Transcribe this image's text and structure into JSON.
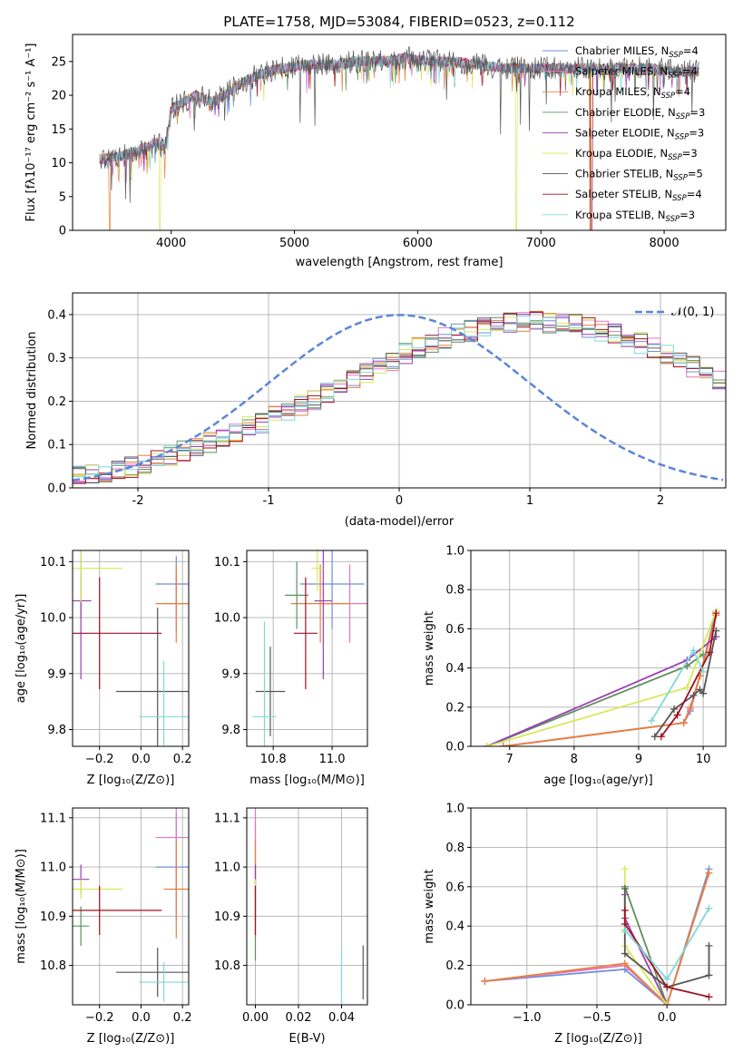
{
  "figure_title": "PLATE=1758, MJD=53084, FIBERID=0523, z=0.112",
  "colors": {
    "chabrier_miles": "#6f8fd8",
    "salpeter_miles": "#e377c2",
    "kroupa_miles": "#e8803a",
    "chabrier_elodie": "#5f8f5f",
    "salpeter_elodie": "#9b3fb5",
    "kroupa_elodie": "#d8e85a",
    "chabrier_stelib": "#555555",
    "salpeter_stelib": "#a01020",
    "kroupa_stelib": "#80d8d8",
    "normal": "#5b86d6"
  },
  "models": [
    {
      "key": "chabrier_miles",
      "label": "Chabrier MILES, N",
      "sub": "SSP",
      "eq": "=4"
    },
    {
      "key": "salpeter_miles",
      "label": "Salpeter MILES, N",
      "sub": "SSP",
      "eq": "=4"
    },
    {
      "key": "kroupa_miles",
      "label": "Kroupa MILES, N",
      "sub": "SSP",
      "eq": "=4"
    },
    {
      "key": "chabrier_elodie",
      "label": "Chabrier ELODIE, N",
      "sub": "SSP",
      "eq": "=3"
    },
    {
      "key": "salpeter_elodie",
      "label": "Salpeter ELODIE, N",
      "sub": "SSP",
      "eq": "=3"
    },
    {
      "key": "kroupa_elodie",
      "label": "Kroupa ELODIE, N",
      "sub": "SSP",
      "eq": "=3"
    },
    {
      "key": "chabrier_stelib",
      "label": "Chabrier STELIB, N",
      "sub": "SSP",
      "eq": "=5"
    },
    {
      "key": "salpeter_stelib",
      "label": "Salpeter STELIB, N",
      "sub": "SSP",
      "eq": "=4"
    },
    {
      "key": "kroupa_stelib",
      "label": "Kroupa STELIB, N",
      "sub": "SSP",
      "eq": "=3"
    }
  ],
  "chart_data": [
    {
      "id": "spectrum",
      "type": "line",
      "xlabel": "wavelength [Angstrom, rest frame]",
      "ylabel": "Flux [fλ10⁻¹⁷ erg cm⁻² s⁻¹ A⁻¹]",
      "xlim": [
        3200,
        8500
      ],
      "ylim": [
        0,
        29
      ],
      "xticks": [
        4000,
        5000,
        6000,
        7000,
        8000
      ],
      "yticks": [
        0,
        5,
        10,
        15,
        20,
        25
      ],
      "continuum": [
        [
          3420,
          10.5
        ],
        [
          3600,
          11
        ],
        [
          3750,
          12
        ],
        [
          3880,
          13
        ],
        [
          3950,
          12
        ],
        [
          4000,
          18
        ],
        [
          4100,
          19
        ],
        [
          4200,
          20
        ],
        [
          4350,
          19
        ],
        [
          4500,
          21
        ],
        [
          4700,
          23
        ],
        [
          4900,
          24
        ],
        [
          5100,
          24.5
        ],
        [
          5300,
          24.5
        ],
        [
          5500,
          25
        ],
        [
          5700,
          25
        ],
        [
          5900,
          25.5
        ],
        [
          6100,
          25
        ],
        [
          6300,
          25
        ],
        [
          6500,
          24.5
        ],
        [
          6700,
          24
        ],
        [
          6900,
          24
        ],
        [
          7100,
          24
        ],
        [
          7300,
          24
        ],
        [
          7500,
          24
        ],
        [
          7700,
          24
        ],
        [
          7900,
          24
        ],
        [
          8100,
          23.5
        ],
        [
          8280,
          23.5
        ]
      ]
    },
    {
      "id": "residuals",
      "type": "histogram",
      "xlabel": "(data-model)/error",
      "ylabel": "Normed distribution",
      "xlim": [
        -2.5,
        2.5
      ],
      "ylim": [
        0,
        0.45
      ],
      "xticks": [
        -2,
        -1,
        0,
        1,
        2
      ],
      "yticks": [
        0.0,
        0.1,
        0.2,
        0.3,
        0.4
      ],
      "legend": "𝒩(0, 1)",
      "bin_width": 0.1,
      "bin_start": -2.5,
      "base": [
        0.028,
        0.03,
        0.035,
        0.04,
        0.048,
        0.055,
        0.065,
        0.075,
        0.085,
        0.095,
        0.105,
        0.115,
        0.128,
        0.14,
        0.152,
        0.165,
        0.178,
        0.19,
        0.205,
        0.22,
        0.235,
        0.25,
        0.265,
        0.28,
        0.295,
        0.31,
        0.322,
        0.335,
        0.345,
        0.355,
        0.363,
        0.37,
        0.376,
        0.38,
        0.382,
        0.383,
        0.382,
        0.38,
        0.376,
        0.37,
        0.363,
        0.355,
        0.345,
        0.335,
        0.322,
        0.31,
        0.295,
        0.28,
        0.265,
        0.25,
        0.235,
        0.22,
        0.205,
        0.19,
        0.178,
        0.165,
        0.152,
        0.14,
        0.128,
        0.115,
        0.105,
        0.095,
        0.085,
        0.075,
        0.065,
        0.055,
        0.048,
        0.04,
        0.035,
        0.03,
        0.028,
        0.027,
        0.026,
        0.025,
        0.025,
        0.024,
        0.024,
        0.023,
        0.023,
        0.023
      ]
    },
    {
      "id": "age_vs_Z",
      "type": "errorbar",
      "xlabel": "Z [log₁₀(Z/Z⊙)]",
      "ylabel": "age  [log₁₀(age/yr)]",
      "xlim": [
        -0.33,
        0.23
      ],
      "ylim": [
        9.77,
        10.12
      ],
      "xticks": [
        -0.2,
        0.0,
        0.2
      ],
      "xticklabels": [
        "−0.2",
        "0.0",
        "0.2"
      ],
      "yticks": [
        9.8,
        9.9,
        10.0,
        10.1
      ],
      "points": [
        {
          "model": "chabrier_miles",
          "x": 0.17,
          "y": 10.06,
          "xerr": 0.1,
          "yerr": 0.05
        },
        {
          "model": "salpeter_miles",
          "x": 0.17,
          "y": 10.025,
          "xerr": 0.06,
          "yerr": 0.05
        },
        {
          "model": "kroupa_miles",
          "x": 0.17,
          "y": 10.025,
          "xerr": 0.1,
          "yerr": 0.07
        },
        {
          "model": "chabrier_elodie",
          "x": -0.29,
          "y": 10.04,
          "xerr": 0.0,
          "yerr": 0.04
        },
        {
          "model": "salpeter_elodie",
          "x": -0.29,
          "y": 10.03,
          "xerr": 0.05,
          "yerr": 0.14
        },
        {
          "model": "kroupa_elodie",
          "x": -0.29,
          "y": 10.088,
          "xerr": 0.2,
          "yerr": 0.06
        },
        {
          "model": "chabrier_stelib",
          "x": 0.08,
          "y": 9.868,
          "xerr": 0.2,
          "yerr": 0.15
        },
        {
          "model": "salpeter_stelib",
          "x": -0.2,
          "y": 9.972,
          "xerr": 0.3,
          "yerr": 0.1
        },
        {
          "model": "kroupa_stelib",
          "x": 0.11,
          "y": 9.823,
          "xerr": 0.12,
          "yerr": 0.1
        }
      ]
    },
    {
      "id": "age_vs_mass",
      "type": "errorbar",
      "xlabel": "mass [log₁₀(M/M⊙)]",
      "ylabel": "",
      "xlim": [
        10.71,
        11.12
      ],
      "ylim": [
        9.77,
        10.12
      ],
      "xticks": [
        10.8,
        11.0
      ],
      "xticklabels": [
        "10.8",
        "11.0"
      ],
      "yticks": [
        9.8,
        9.9,
        10.0,
        10.1
      ],
      "points": [
        {
          "model": "chabrier_miles",
          "x": 11.0,
          "y": 10.06,
          "xerr": 0.11,
          "yerr": 0.08
        },
        {
          "model": "salpeter_miles",
          "x": 11.06,
          "y": 10.025,
          "xerr": 0.09,
          "yerr": 0.07
        },
        {
          "model": "kroupa_miles",
          "x": 10.96,
          "y": 10.025,
          "xerr": 0.1,
          "yerr": 0.07
        },
        {
          "model": "chabrier_elodie",
          "x": 10.88,
          "y": 10.04,
          "xerr": 0.04,
          "yerr": 0.06
        },
        {
          "model": "salpeter_elodie",
          "x": 10.97,
          "y": 10.03,
          "xerr": 0.03,
          "yerr": 0.14
        },
        {
          "model": "kroupa_elodie",
          "x": 10.95,
          "y": 10.088,
          "xerr": 0.02,
          "yerr": 0.04
        },
        {
          "model": "chabrier_stelib",
          "x": 10.79,
          "y": 9.868,
          "xerr": 0.05,
          "yerr": 0.08
        },
        {
          "model": "salpeter_stelib",
          "x": 10.91,
          "y": 9.972,
          "xerr": 0.04,
          "yerr": 0.1
        },
        {
          "model": "kroupa_stelib",
          "x": 10.77,
          "y": 9.823,
          "xerr": 0.04,
          "yerr": 0.17
        }
      ]
    },
    {
      "id": "mass_vs_Z",
      "type": "errorbar",
      "xlabel": "Z [log₁₀(Z/Z⊙)]",
      "ylabel": "mass [log₁₀(M/M⊙)]",
      "xlim": [
        -0.33,
        0.23
      ],
      "ylim": [
        10.72,
        11.12
      ],
      "xticks": [
        -0.2,
        0.0,
        0.2
      ],
      "xticklabels": [
        "−0.2",
        "0.0",
        "0.2"
      ],
      "yticks": [
        10.8,
        10.9,
        11.0,
        11.1
      ],
      "points": [
        {
          "model": "chabrier_miles",
          "x": 0.17,
          "y": 11.0,
          "xerr": 0.1,
          "yerr": 0.11
        },
        {
          "model": "salpeter_miles",
          "x": 0.17,
          "y": 11.06,
          "xerr": 0.1,
          "yerr": 0.09
        },
        {
          "model": "kroupa_miles",
          "x": 0.17,
          "y": 10.955,
          "xerr": 0.06,
          "yerr": 0.1
        },
        {
          "model": "chabrier_elodie",
          "x": -0.29,
          "y": 10.88,
          "xerr": 0.04,
          "yerr": 0.04
        },
        {
          "model": "salpeter_elodie",
          "x": -0.29,
          "y": 10.975,
          "xerr": 0.04,
          "yerr": 0.03
        },
        {
          "model": "kroupa_elodie",
          "x": -0.29,
          "y": 10.955,
          "xerr": 0.2,
          "yerr": 0.02
        },
        {
          "model": "chabrier_stelib",
          "x": 0.08,
          "y": 10.786,
          "xerr": 0.2,
          "yerr": 0.05
        },
        {
          "model": "salpeter_stelib",
          "x": -0.2,
          "y": 10.912,
          "xerr": 0.3,
          "yerr": 0.05
        },
        {
          "model": "kroupa_stelib",
          "x": 0.11,
          "y": 10.766,
          "xerr": 0.12,
          "yerr": 0.04
        }
      ]
    },
    {
      "id": "mass_vs_ebv",
      "type": "errorbar",
      "xlabel": "E(B-V)",
      "ylabel": "",
      "xlim": [
        -0.004,
        0.052
      ],
      "ylim": [
        10.72,
        11.12
      ],
      "xticks": [
        0.0,
        0.02,
        0.04
      ],
      "xticklabels": [
        "0.00",
        "0.02",
        "0.04"
      ],
      "yticks": [
        10.8,
        10.9,
        11.0,
        11.1
      ],
      "points": [
        {
          "model": "chabrier_miles",
          "x": 0.0,
          "y": 11.0,
          "xerr": 0.0,
          "yerr": 0.11
        },
        {
          "model": "salpeter_miles",
          "x": 0.0,
          "y": 11.06,
          "xerr": 0.0,
          "yerr": 0.09
        },
        {
          "model": "kroupa_miles",
          "x": 0.0,
          "y": 10.955,
          "xerr": 0.0,
          "yerr": 0.1
        },
        {
          "model": "chabrier_elodie",
          "x": 0.0,
          "y": 10.88,
          "xerr": 0.0,
          "yerr": 0.07
        },
        {
          "model": "salpeter_elodie",
          "x": 0.0,
          "y": 10.975,
          "xerr": 0.0,
          "yerr": 0.03
        },
        {
          "model": "kroupa_elodie",
          "x": 0.0,
          "y": 10.955,
          "xerr": 0.0,
          "yerr": 0.02
        },
        {
          "model": "chabrier_stelib",
          "x": 0.05,
          "y": 10.786,
          "xerr": 0.0,
          "yerr": 0.055
        },
        {
          "model": "salpeter_stelib",
          "x": 0.0,
          "y": 10.912,
          "xerr": 0.0,
          "yerr": 0.05
        },
        {
          "model": "kroupa_stelib",
          "x": 0.04,
          "y": 10.766,
          "xerr": 0.0,
          "yerr": 0.065
        }
      ]
    },
    {
      "id": "massweight_vs_age",
      "type": "line",
      "xlabel": "age  [log₁₀(age/yr)]",
      "ylabel": "mass weight",
      "xlim": [
        6.4,
        10.35
      ],
      "ylim": [
        0,
        1
      ],
      "xticks": [
        7,
        8,
        9,
        10
      ],
      "xticklabels": [
        "7",
        "8",
        "9",
        "10"
      ],
      "yticks": [
        0.0,
        0.2,
        0.4,
        0.6,
        0.8,
        1.0
      ],
      "yticklabels": [
        "0.0",
        "0.2",
        "0.4",
        "0.6",
        "0.8",
        "1.0"
      ],
      "series": [
        {
          "model": "chabrier_miles",
          "x": [
            6.9,
            9.7,
            9.8,
            9.95,
            10.2
          ],
          "y": [
            0.0,
            0.12,
            0.18,
            0.36,
            0.69
          ]
        },
        {
          "model": "salpeter_miles",
          "x": [
            6.9,
            9.7,
            9.8,
            9.95,
            10.2
          ],
          "y": [
            0.0,
            0.12,
            0.19,
            0.36,
            0.67
          ]
        },
        {
          "model": "kroupa_miles",
          "x": [
            6.9,
            9.7,
            9.8,
            9.95,
            10.2
          ],
          "y": [
            0.0,
            0.12,
            0.2,
            0.36,
            0.67
          ]
        },
        {
          "model": "chabrier_elodie",
          "x": [
            6.65,
            9.75,
            10.0
          ],
          "y": [
            0.0,
            0.41,
            0.47
          ]
        },
        {
          "model": "salpeter_elodie",
          "x": [
            6.65,
            9.75,
            10.2
          ],
          "y": [
            0.0,
            0.44,
            0.56
          ]
        },
        {
          "model": "kroupa_elodie",
          "x": [
            6.65,
            9.75,
            10.2
          ],
          "y": [
            0.0,
            0.3,
            0.69
          ]
        },
        {
          "model": "chabrier_stelib",
          "x": [
            9.25,
            9.55,
            9.85,
            9.95,
            10.0,
            10.2
          ],
          "y": [
            0.05,
            0.19,
            0.26,
            0.29,
            0.27,
            0.59
          ]
        },
        {
          "model": "salpeter_stelib",
          "x": [
            9.35,
            9.6,
            10.1,
            10.2
          ],
          "y": [
            0.05,
            0.16,
            0.48,
            0.68
          ]
        },
        {
          "model": "kroupa_stelib",
          "x": [
            9.2,
            9.85,
            10.0
          ],
          "y": [
            0.13,
            0.49,
            0.38
          ]
        }
      ]
    },
    {
      "id": "massweight_vs_Z",
      "type": "line",
      "xlabel": "Z [log₁₀(Z/Z⊙)]",
      "ylabel": "mass weight",
      "xlim": [
        -1.4,
        0.42
      ],
      "ylim": [
        0,
        1
      ],
      "xticks": [
        -1.0,
        -0.5,
        0.0
      ],
      "xticklabels": [
        "−1.0",
        "−0.5",
        "0.0"
      ],
      "yticks": [
        0.0,
        0.2,
        0.4,
        0.6,
        0.8,
        1.0
      ],
      "yticklabels": [
        "0.0",
        "0.2",
        "0.4",
        "0.6",
        "0.8",
        "1.0"
      ],
      "series": [
        {
          "model": "chabrier_miles",
          "x": [
            -1.3,
            -0.3,
            0.0,
            0.3
          ],
          "y": [
            0.12,
            0.18,
            0.0,
            0.69
          ]
        },
        {
          "model": "salpeter_miles",
          "x": [
            -1.3,
            -0.3,
            0.0,
            0.3
          ],
          "y": [
            0.12,
            0.2,
            0.0,
            0.67
          ]
        },
        {
          "model": "kroupa_miles",
          "x": [
            -1.3,
            -0.3,
            0.0,
            0.3
          ],
          "y": [
            0.12,
            0.21,
            0.0,
            0.67
          ]
        },
        {
          "model": "chabrier_elodie",
          "x": [
            -0.3,
            0.0
          ],
          "y": [
            0.6,
            0.0
          ]
        },
        {
          "model": "salpeter_elodie",
          "x": [
            -0.3,
            -0.3,
            0.0
          ],
          "y": [
            0.56,
            0.44,
            0.0
          ]
        },
        {
          "model": "kroupa_elodie",
          "x": [
            -0.3,
            -0.3,
            -0.3,
            0.0
          ],
          "y": [
            0.69,
            0.37,
            0.3,
            0.0
          ]
        },
        {
          "model": "chabrier_stelib",
          "x": [
            -0.3,
            -0.3,
            0.0,
            0.3,
            0.3
          ],
          "y": [
            0.59,
            0.26,
            0.09,
            0.15,
            0.3
          ]
        },
        {
          "model": "salpeter_stelib",
          "x": [
            -0.3,
            -0.3,
            0.0,
            0.3
          ],
          "y": [
            0.48,
            0.41,
            0.09,
            0.04
          ]
        },
        {
          "model": "kroupa_stelib",
          "x": [
            -0.3,
            0.0,
            0.3
          ],
          "y": [
            0.38,
            0.13,
            0.49
          ]
        }
      ]
    }
  ]
}
